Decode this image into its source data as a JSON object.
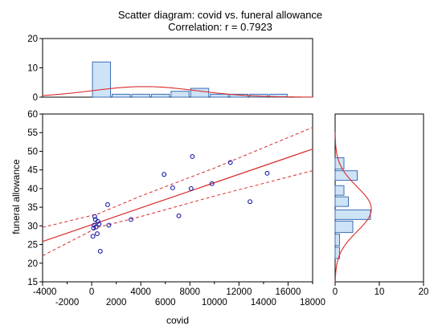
{
  "chart": {
    "title": "Scatter diagram: covid vs. funeral allowance",
    "subtitle": "Correlation: r = 0.7923",
    "xlabel": "covid",
    "ylabel": "funeral allowance"
  },
  "colors": {
    "point": "#1a1aa6",
    "fit_line": "#d92b2b",
    "hist_fill": "#cfe3f7",
    "hist_stroke": "#3a6fb5",
    "axis": "#000000"
  },
  "chart_data": [
    {
      "type": "scatter",
      "title": "Scatter diagram: covid vs. funeral allowance",
      "subtitle": "Correlation: r = 0.7923",
      "xlabel": "covid",
      "ylabel": "funeral allowance",
      "xlim": [
        -4000,
        18000
      ],
      "ylim": [
        15,
        60
      ],
      "x_ticks_upper": [
        -4000,
        0,
        4000,
        8000,
        12000,
        16000
      ],
      "x_ticks_lower": [
        -2000,
        2000,
        6000,
        10000,
        14000,
        18000
      ],
      "y_ticks": [
        15,
        20,
        25,
        30,
        35,
        40,
        45,
        50,
        55,
        60
      ],
      "grid": false,
      "points": [
        {
          "x": 100,
          "y": 27.2
        },
        {
          "x": 150,
          "y": 29.4
        },
        {
          "x": 200,
          "y": 30.2
        },
        {
          "x": 250,
          "y": 32.5
        },
        {
          "x": 300,
          "y": 31.7
        },
        {
          "x": 350,
          "y": 29.7
        },
        {
          "x": 450,
          "y": 27.9
        },
        {
          "x": 500,
          "y": 31.2
        },
        {
          "x": 600,
          "y": 30.5
        },
        {
          "x": 700,
          "y": 23.2
        },
        {
          "x": 1300,
          "y": 35.7
        },
        {
          "x": 1400,
          "y": 30.2
        },
        {
          "x": 3200,
          "y": 31.7
        },
        {
          "x": 5900,
          "y": 43.8
        },
        {
          "x": 6600,
          "y": 40.2
        },
        {
          "x": 7100,
          "y": 32.7
        },
        {
          "x": 8100,
          "y": 40.0
        },
        {
          "x": 8200,
          "y": 48.6
        },
        {
          "x": 9800,
          "y": 41.3
        },
        {
          "x": 11300,
          "y": 47.0
        },
        {
          "x": 12900,
          "y": 36.5
        },
        {
          "x": 14300,
          "y": 44.1
        }
      ],
      "fit_line": {
        "x0": -4000,
        "y0": 25.8,
        "x1": 18000,
        "y1": 50.6
      },
      "confidence_band": {
        "upper": [
          [
            -4000,
            29.6
          ],
          [
            500,
            33.2
          ],
          [
            4000,
            38.0
          ],
          [
            10000,
            45.5
          ],
          [
            18000,
            56.4
          ]
        ],
        "lower": [
          [
            -4000,
            22.0
          ],
          [
            500,
            29.6
          ],
          [
            4000,
            32.5
          ],
          [
            10000,
            38.0
          ],
          [
            18000,
            44.8
          ]
        ]
      }
    },
    {
      "type": "bar",
      "title": "",
      "xlabel": "covid",
      "ylabel": "",
      "ylim": [
        0,
        20
      ],
      "y_ticks": [
        0,
        10,
        20
      ],
      "bins": [
        {
          "x0": 0,
          "x1": 1600,
          "count": 12
        },
        {
          "x0": 1600,
          "x1": 3200,
          "count": 1
        },
        {
          "x0": 3200,
          "x1": 4800,
          "count": 1
        },
        {
          "x0": 4800,
          "x1": 6400,
          "count": 1
        },
        {
          "x0": 6400,
          "x1": 8000,
          "count": 2
        },
        {
          "x0": 8000,
          "x1": 9600,
          "count": 3
        },
        {
          "x0": 9600,
          "x1": 11200,
          "count": 1
        },
        {
          "x0": 11200,
          "x1": 12800,
          "count": 1
        },
        {
          "x0": 12800,
          "x1": 14400,
          "count": 1
        },
        {
          "x0": 14400,
          "x1": 16000,
          "count": 1
        }
      ],
      "normal_curve": {
        "mean": 4300,
        "sd": 4300,
        "peak": 3.6
      }
    },
    {
      "type": "bar",
      "orientation": "horizontal",
      "title": "",
      "xlabel": "",
      "ylabel": "funeral allowance",
      "xlim": [
        0,
        20
      ],
      "x_ticks": [
        0,
        10,
        20
      ],
      "bins": [
        {
          "y0": 50,
          "y1": 55,
          "count": 0
        },
        {
          "y0": 45,
          "y1": 48.5,
          "count": 2
        },
        {
          "y0": 42,
          "y1": 45,
          "count": 5
        },
        {
          "y0": 38,
          "y1": 41,
          "count": 2
        },
        {
          "y0": 35,
          "y1": 38,
          "count": 3
        },
        {
          "y0": 31.5,
          "y1": 34.5,
          "count": 8
        },
        {
          "y0": 28,
          "y1": 31.5,
          "count": 4
        },
        {
          "y0": 24.5,
          "y1": 28,
          "count": 1
        },
        {
          "y0": 21,
          "y1": 24.5,
          "count": 1
        }
      ],
      "normal_curve": {
        "mean": 34.5,
        "sd": 6,
        "peak": 8.2
      }
    }
  ]
}
